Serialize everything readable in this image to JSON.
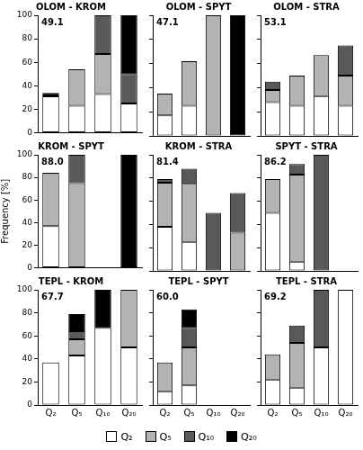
{
  "chart_data": [
    {
      "type": "bar",
      "title": "OLOM - KROM",
      "annotation": "49.1",
      "stacked": true,
      "grid": false,
      "tick_labels": "y",
      "categories": [
        "Q₂",
        "Q₅",
        "Q₁₀",
        "Q₂₀"
      ],
      "ylim": [
        0,
        100
      ],
      "yticks": [
        0,
        20,
        40,
        60,
        80,
        100
      ],
      "series": [
        {
          "name": "Q₂",
          "color": "#ffffff",
          "values": [
            31,
            23,
            33,
            25
          ]
        },
        {
          "name": "Q₅",
          "color": "#b3b3b3",
          "values": [
            0,
            31,
            34,
            0
          ]
        },
        {
          "name": "Q₁₀",
          "color": "#595959",
          "values": [
            0,
            0,
            33,
            25
          ]
        },
        {
          "name": "Q₂₀",
          "color": "#000000",
          "values": [
            3,
            0,
            0,
            50
          ]
        }
      ]
    },
    {
      "type": "bar",
      "title": "OLOM - SPYT",
      "annotation": "47.1",
      "stacked": true,
      "grid": false,
      "tick_labels": false,
      "categories": [
        "Q₂",
        "Q₅",
        "Q₁₀",
        "Q₂₀"
      ],
      "ylim": [
        0,
        100
      ],
      "yticks": [
        0,
        20,
        40,
        60,
        80,
        100
      ],
      "series": [
        {
          "name": "Q₂",
          "color": "#ffffff",
          "values": [
            17,
            25,
            0,
            0
          ]
        },
        {
          "name": "Q₅",
          "color": "#b3b3b3",
          "values": [
            18,
            37,
            100,
            0
          ]
        },
        {
          "name": "Q₁₀",
          "color": "#595959",
          "values": [
            0,
            0,
            0,
            0
          ]
        },
        {
          "name": "Q₂₀",
          "color": "#000000",
          "values": [
            0,
            0,
            0,
            100
          ]
        }
      ]
    },
    {
      "type": "bar",
      "title": "OLOM - STRA",
      "annotation": "53.1",
      "stacked": true,
      "grid": false,
      "tick_labels": false,
      "categories": [
        "Q₂",
        "Q₅",
        "Q₁₀",
        "Q₂₀"
      ],
      "ylim": [
        0,
        100
      ],
      "yticks": [
        0,
        20,
        40,
        60,
        80,
        100
      ],
      "series": [
        {
          "name": "Q₂",
          "color": "#ffffff",
          "values": [
            28,
            25,
            33,
            25
          ]
        },
        {
          "name": "Q₅",
          "color": "#b3b3b3",
          "values": [
            10,
            25,
            34,
            25
          ]
        },
        {
          "name": "Q₁₀",
          "color": "#595959",
          "values": [
            7,
            0,
            0,
            25
          ]
        },
        {
          "name": "Q₂₀",
          "color": "#000000",
          "values": [
            0,
            0,
            0,
            0
          ]
        }
      ]
    },
    {
      "type": "bar",
      "title": "KROM - SPYT",
      "annotation": "88.0",
      "stacked": true,
      "grid": false,
      "tick_labels": "y",
      "ylabel": "Frequency [%]",
      "categories": [
        "Q₂",
        "Q₅",
        "Q₁₀",
        "Q₂₀"
      ],
      "ylim": [
        0,
        100
      ],
      "yticks": [
        0,
        20,
        40,
        60,
        80,
        100
      ],
      "series": [
        {
          "name": "Q₂",
          "color": "#ffffff",
          "values": [
            37,
            0,
            0,
            0
          ]
        },
        {
          "name": "Q₅",
          "color": "#b3b3b3",
          "values": [
            47,
            75,
            0,
            0
          ]
        },
        {
          "name": "Q₁₀",
          "color": "#595959",
          "values": [
            0,
            25,
            0,
            0
          ]
        },
        {
          "name": "Q₂₀",
          "color": "#000000",
          "values": [
            0,
            0,
            0,
            100
          ]
        }
      ]
    },
    {
      "type": "bar",
      "title": "KROM - STRA",
      "annotation": "81.4",
      "stacked": true,
      "grid": false,
      "tick_labels": false,
      "categories": [
        "Q₂",
        "Q₅",
        "Q₁₀",
        "Q₂₀"
      ],
      "ylim": [
        0,
        100
      ],
      "yticks": [
        0,
        20,
        40,
        60,
        80,
        100
      ],
      "series": [
        {
          "name": "Q₂",
          "color": "#ffffff",
          "values": [
            38,
            25,
            0,
            0
          ]
        },
        {
          "name": "Q₅",
          "color": "#b3b3b3",
          "values": [
            38,
            50,
            0,
            33
          ]
        },
        {
          "name": "Q₁₀",
          "color": "#595959",
          "values": [
            3,
            13,
            50,
            34
          ]
        },
        {
          "name": "Q₂₀",
          "color": "#000000",
          "values": [
            0,
            0,
            0,
            0
          ]
        }
      ]
    },
    {
      "type": "bar",
      "title": "SPYT - STRA",
      "annotation": "86.2",
      "stacked": true,
      "grid": false,
      "tick_labels": false,
      "categories": [
        "Q₂",
        "Q₅",
        "Q₁₀",
        "Q₂₀"
      ],
      "ylim": [
        0,
        100
      ],
      "yticks": [
        0,
        20,
        40,
        60,
        80,
        100
      ],
      "series": [
        {
          "name": "Q₂",
          "color": "#ffffff",
          "values": [
            50,
            8,
            0,
            0
          ]
        },
        {
          "name": "Q₅",
          "color": "#b3b3b3",
          "values": [
            29,
            75,
            0,
            0
          ]
        },
        {
          "name": "Q₁₀",
          "color": "#595959",
          "values": [
            0,
            9,
            100,
            0
          ]
        },
        {
          "name": "Q₂₀",
          "color": "#000000",
          "values": [
            0,
            0,
            0,
            0
          ]
        }
      ]
    },
    {
      "type": "bar",
      "title": "TEPL - KROM",
      "annotation": "67.7",
      "stacked": true,
      "grid": false,
      "categories": [
        "Q₂",
        "Q₅",
        "Q₁₀",
        "Q₂₀"
      ],
      "ylim": [
        0,
        100
      ],
      "yticks": [
        0,
        20,
        40,
        60,
        80,
        100
      ],
      "series": [
        {
          "name": "Q₂",
          "color": "#ffffff",
          "values": [
            37,
            43,
            67,
            50
          ]
        },
        {
          "name": "Q₅",
          "color": "#b3b3b3",
          "values": [
            0,
            14,
            0,
            50
          ]
        },
        {
          "name": "Q₁₀",
          "color": "#595959",
          "values": [
            0,
            7,
            0,
            0
          ]
        },
        {
          "name": "Q₂₀",
          "color": "#000000",
          "values": [
            0,
            15,
            33,
            0
          ]
        }
      ]
    },
    {
      "type": "bar",
      "title": "TEPL - SPYT",
      "annotation": "60.0",
      "stacked": true,
      "grid": false,
      "tick_labels": "x",
      "legend": "bottom",
      "categories": [
        "Q₂",
        "Q₅",
        "Q₁₀",
        "Q₂₀"
      ],
      "ylim": [
        0,
        100
      ],
      "yticks": [
        0,
        20,
        40,
        60,
        80,
        100
      ],
      "series": [
        {
          "name": "Q₂",
          "color": "#ffffff",
          "values": [
            12,
            17,
            0,
            0
          ]
        },
        {
          "name": "Q₅",
          "color": "#b3b3b3",
          "values": [
            25,
            33,
            0,
            0
          ]
        },
        {
          "name": "Q₁₀",
          "color": "#595959",
          "values": [
            0,
            17,
            0,
            0
          ]
        },
        {
          "name": "Q₂₀",
          "color": "#000000",
          "values": [
            0,
            16,
            0,
            0
          ]
        }
      ]
    },
    {
      "type": "bar",
      "title": "TEPL - STRA",
      "annotation": "69.2",
      "stacked": true,
      "grid": false,
      "tick_labels": "x",
      "categories": [
        "Q₂",
        "Q₅",
        "Q₁₀",
        "Q₂₀"
      ],
      "ylim": [
        0,
        100
      ],
      "yticks": [
        0,
        20,
        40,
        60,
        80,
        100
      ],
      "series": [
        {
          "name": "Q₂",
          "color": "#ffffff",
          "values": [
            22,
            15,
            50,
            100
          ]
        },
        {
          "name": "Q₅",
          "color": "#b3b3b3",
          "values": [
            22,
            39,
            0,
            0
          ]
        },
        {
          "name": "Q₁₀",
          "color": "#595959",
          "values": [
            0,
            15,
            50,
            0
          ]
        },
        {
          "name": "Q₂₀",
          "color": "#000000",
          "values": [
            0,
            0,
            0,
            0
          ]
        }
      ]
    }
  ]
}
